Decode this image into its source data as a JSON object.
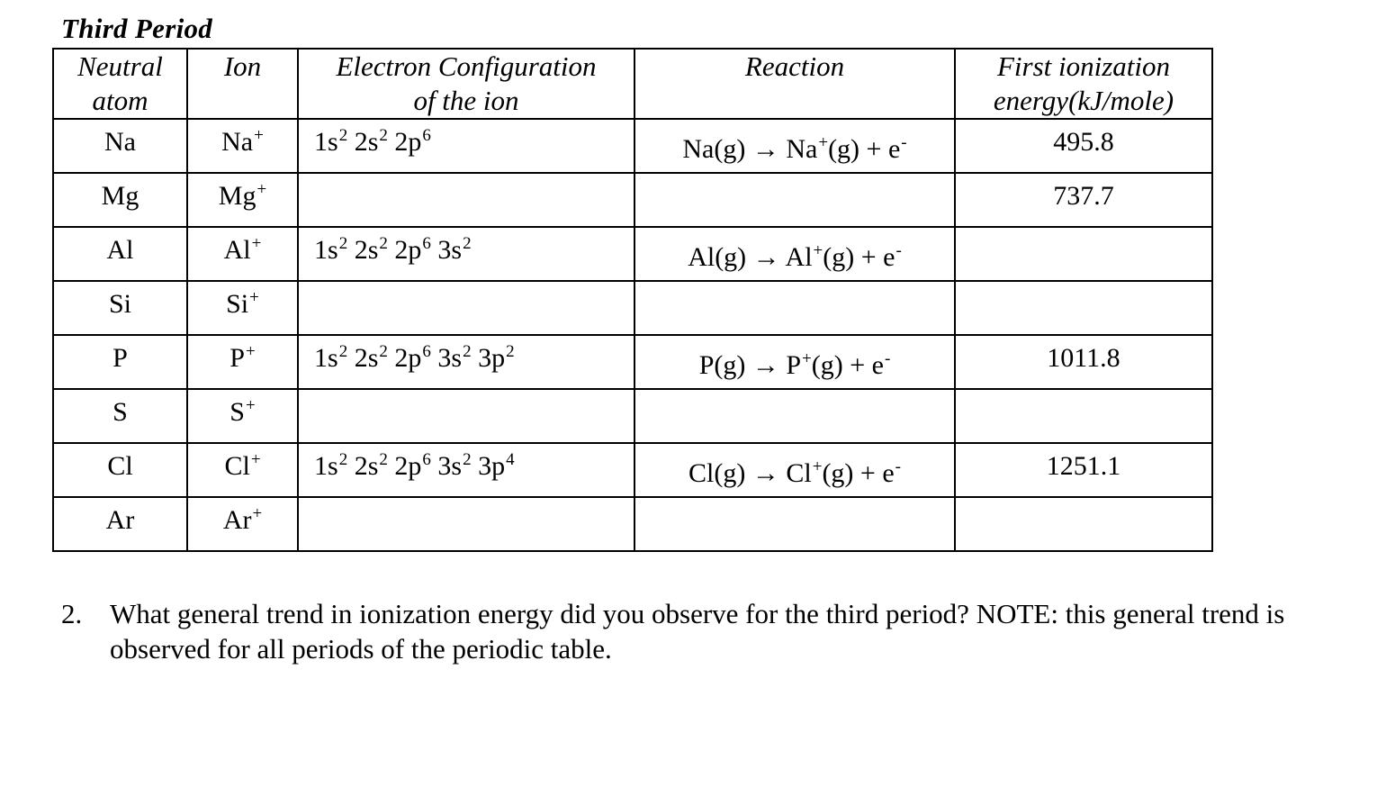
{
  "title": "Third Period",
  "headers": {
    "neutral_line1": "Neutral",
    "neutral_line2": "atom",
    "ion": "Ion",
    "config_line1": "Electron Configuration",
    "config_line2": "of the ion",
    "reaction": "Reaction",
    "energy_line1": "First ionization",
    "energy_line2": "energy(kJ/mole)"
  },
  "rows": [
    {
      "atom": "Na",
      "ion": "Na",
      "ion_sup": "+",
      "config": [
        [
          "1s",
          "2"
        ],
        [
          "2s",
          "2"
        ],
        [
          "2p",
          "6"
        ]
      ],
      "reaction": {
        "atom": "Na",
        "ion": "Na",
        "sup": "+",
        "rest": "(g) + e",
        "e_sup": "-"
      },
      "energy": "495.8"
    },
    {
      "atom": "Mg",
      "ion": "Mg",
      "ion_sup": "+",
      "config": [],
      "reaction": null,
      "energy": "737.7"
    },
    {
      "atom": "Al",
      "ion": "Al",
      "ion_sup": "+",
      "config": [
        [
          "1s",
          "2"
        ],
        [
          "2s",
          "2"
        ],
        [
          "2p",
          "6"
        ],
        [
          "3s",
          "2"
        ]
      ],
      "reaction": {
        "atom": "Al",
        "ion": "Al",
        "sup": "+",
        "rest": "(g) + e",
        "e_sup": "-"
      },
      "energy": ""
    },
    {
      "atom": "Si",
      "ion": "Si",
      "ion_sup": "+",
      "config": [],
      "reaction": null,
      "energy": ""
    },
    {
      "atom": "P",
      "ion": "P",
      "ion_sup": "+",
      "config": [
        [
          "1s",
          "2"
        ],
        [
          "2s",
          "2"
        ],
        [
          "2p",
          "6"
        ],
        [
          "3s",
          "2"
        ],
        [
          "3p",
          "2"
        ]
      ],
      "reaction": {
        "atom": "P",
        "ion": "P",
        "sup": "+",
        "rest": "(g) + e",
        "e_sup": "-"
      },
      "energy": "1011.8"
    },
    {
      "atom": "S",
      "ion": "S",
      "ion_sup": "+",
      "config": [],
      "reaction": null,
      "energy": ""
    },
    {
      "atom": "Cl",
      "ion": "Cl",
      "ion_sup": "+",
      "config": [
        [
          "1s",
          "2"
        ],
        [
          "2s",
          "2"
        ],
        [
          "2p",
          "6"
        ],
        [
          "3s",
          "2"
        ],
        [
          "3p",
          "4"
        ]
      ],
      "reaction": {
        "atom": "Cl",
        "ion": "Cl",
        "sup": "+",
        "rest": "(g) + e",
        "e_sup": "-"
      },
      "energy": "1251.1"
    },
    {
      "atom": "Ar",
      "ion": "Ar",
      "ion_sup": "+",
      "config": [],
      "reaction": null,
      "energy": ""
    }
  ],
  "question": {
    "number": "2.",
    "text": "What general trend in ionization energy did you observe for the third period?  NOTE: this general trend is observed for all periods of the periodic table."
  }
}
